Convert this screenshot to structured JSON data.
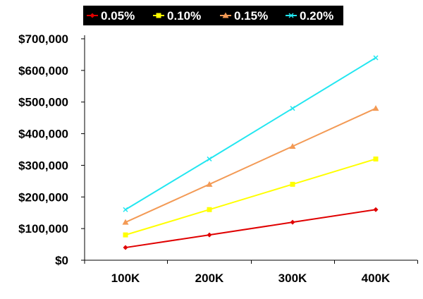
{
  "chart_data": {
    "type": "line",
    "categories": [
      "100K",
      "200K",
      "300K",
      "400K"
    ],
    "series": [
      {
        "name": "0.05%",
        "color": "#e00000",
        "marker": "diamond",
        "values": [
          40000,
          80000,
          120000,
          160000
        ]
      },
      {
        "name": "0.10%",
        "color": "#ffff00",
        "marker": "square",
        "values": [
          80000,
          160000,
          240000,
          320000
        ]
      },
      {
        "name": "0.15%",
        "color": "#f39a55",
        "marker": "triangle",
        "values": [
          120000,
          240000,
          360000,
          480000
        ]
      },
      {
        "name": "0.20%",
        "color": "#22e6f0",
        "marker": "x",
        "values": [
          160000,
          320000,
          480000,
          640000
        ]
      }
    ],
    "y_ticks": [
      0,
      100000,
      200000,
      300000,
      400000,
      500000,
      600000,
      700000
    ],
    "y_tick_labels": [
      "$0",
      "$100,000",
      "$200,000",
      "$300,000",
      "$400,000",
      "$500,000",
      "$600,000",
      "$700,000"
    ],
    "ylim": [
      0,
      700000
    ],
    "grid": false,
    "legend_position": "top",
    "legend_background": "#000000"
  }
}
